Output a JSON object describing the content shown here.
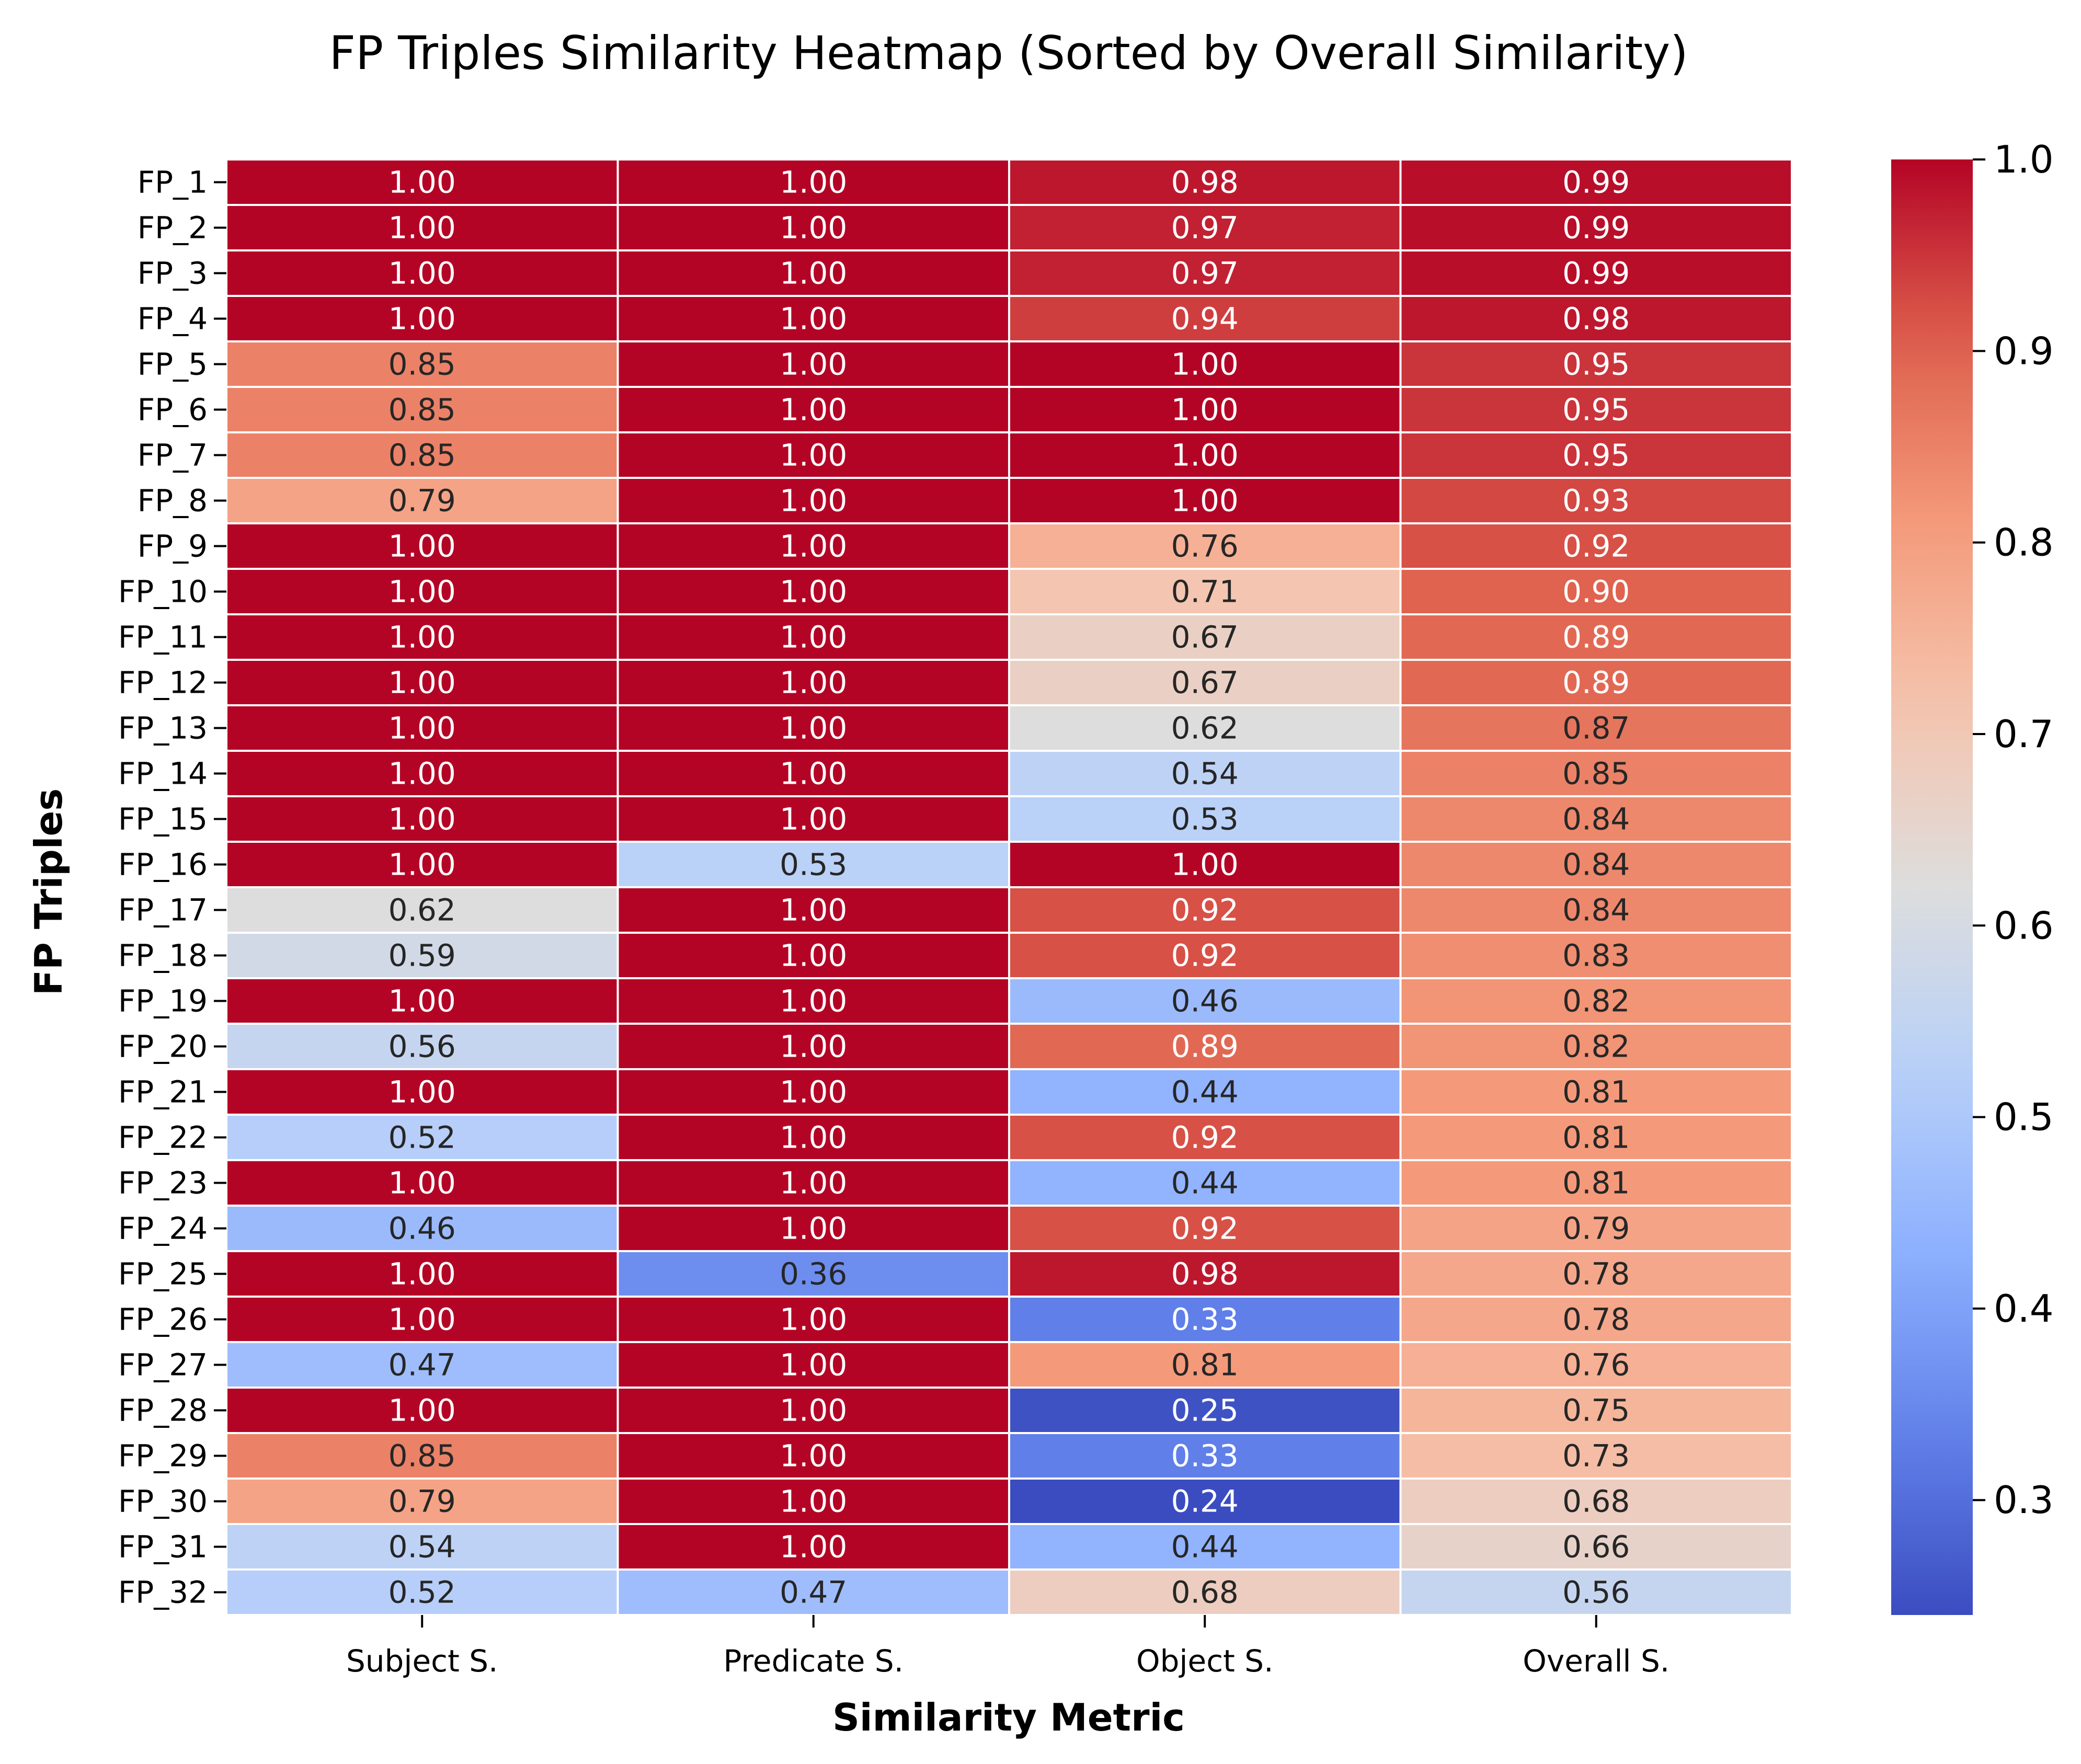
{
  "chart_data": {
    "type": "heatmap",
    "title": "FP Triples Similarity Heatmap (Sorted by Overall Similarity)",
    "xlabel": "Similarity Metric",
    "ylabel": "FP Triples",
    "columns": [
      "Subject S.",
      "Predicate S.",
      "Object S.",
      "Overall S."
    ],
    "rows": [
      "FP_1",
      "FP_2",
      "FP_3",
      "FP_4",
      "FP_5",
      "FP_6",
      "FP_7",
      "FP_8",
      "FP_9",
      "FP_10",
      "FP_11",
      "FP_12",
      "FP_13",
      "FP_14",
      "FP_15",
      "FP_16",
      "FP_17",
      "FP_18",
      "FP_19",
      "FP_20",
      "FP_21",
      "FP_22",
      "FP_23",
      "FP_24",
      "FP_25",
      "FP_26",
      "FP_27",
      "FP_28",
      "FP_29",
      "FP_30",
      "FP_31",
      "FP_32"
    ],
    "values": [
      [
        1.0,
        1.0,
        0.98,
        0.99
      ],
      [
        1.0,
        1.0,
        0.97,
        0.99
      ],
      [
        1.0,
        1.0,
        0.97,
        0.99
      ],
      [
        1.0,
        1.0,
        0.94,
        0.98
      ],
      [
        0.85,
        1.0,
        1.0,
        0.95
      ],
      [
        0.85,
        1.0,
        1.0,
        0.95
      ],
      [
        0.85,
        1.0,
        1.0,
        0.95
      ],
      [
        0.79,
        1.0,
        1.0,
        0.93
      ],
      [
        1.0,
        1.0,
        0.76,
        0.92
      ],
      [
        1.0,
        1.0,
        0.71,
        0.9
      ],
      [
        1.0,
        1.0,
        0.67,
        0.89
      ],
      [
        1.0,
        1.0,
        0.67,
        0.89
      ],
      [
        1.0,
        1.0,
        0.62,
        0.87
      ],
      [
        1.0,
        1.0,
        0.54,
        0.85
      ],
      [
        1.0,
        1.0,
        0.53,
        0.84
      ],
      [
        1.0,
        0.53,
        1.0,
        0.84
      ],
      [
        0.62,
        1.0,
        0.92,
        0.84
      ],
      [
        0.59,
        1.0,
        0.92,
        0.83
      ],
      [
        1.0,
        1.0,
        0.46,
        0.82
      ],
      [
        0.56,
        1.0,
        0.89,
        0.82
      ],
      [
        1.0,
        1.0,
        0.44,
        0.81
      ],
      [
        0.52,
        1.0,
        0.92,
        0.81
      ],
      [
        1.0,
        1.0,
        0.44,
        0.81
      ],
      [
        0.46,
        1.0,
        0.92,
        0.79
      ],
      [
        1.0,
        0.36,
        0.98,
        0.78
      ],
      [
        1.0,
        1.0,
        0.33,
        0.78
      ],
      [
        0.47,
        1.0,
        0.81,
        0.76
      ],
      [
        1.0,
        1.0,
        0.25,
        0.75
      ],
      [
        0.85,
        1.0,
        0.33,
        0.73
      ],
      [
        0.79,
        1.0,
        0.24,
        0.68
      ],
      [
        0.54,
        1.0,
        0.44,
        0.66
      ],
      [
        0.52,
        0.47,
        0.68,
        0.56
      ]
    ],
    "colormap": "coolwarm",
    "vmin": 0.24,
    "vmax": 1.0,
    "colorbar_ticks": [
      0.3,
      0.4,
      0.5,
      0.6,
      0.7,
      0.8,
      0.9,
      1.0
    ],
    "value_format": "0.00",
    "grid_color": "#ffffff"
  }
}
